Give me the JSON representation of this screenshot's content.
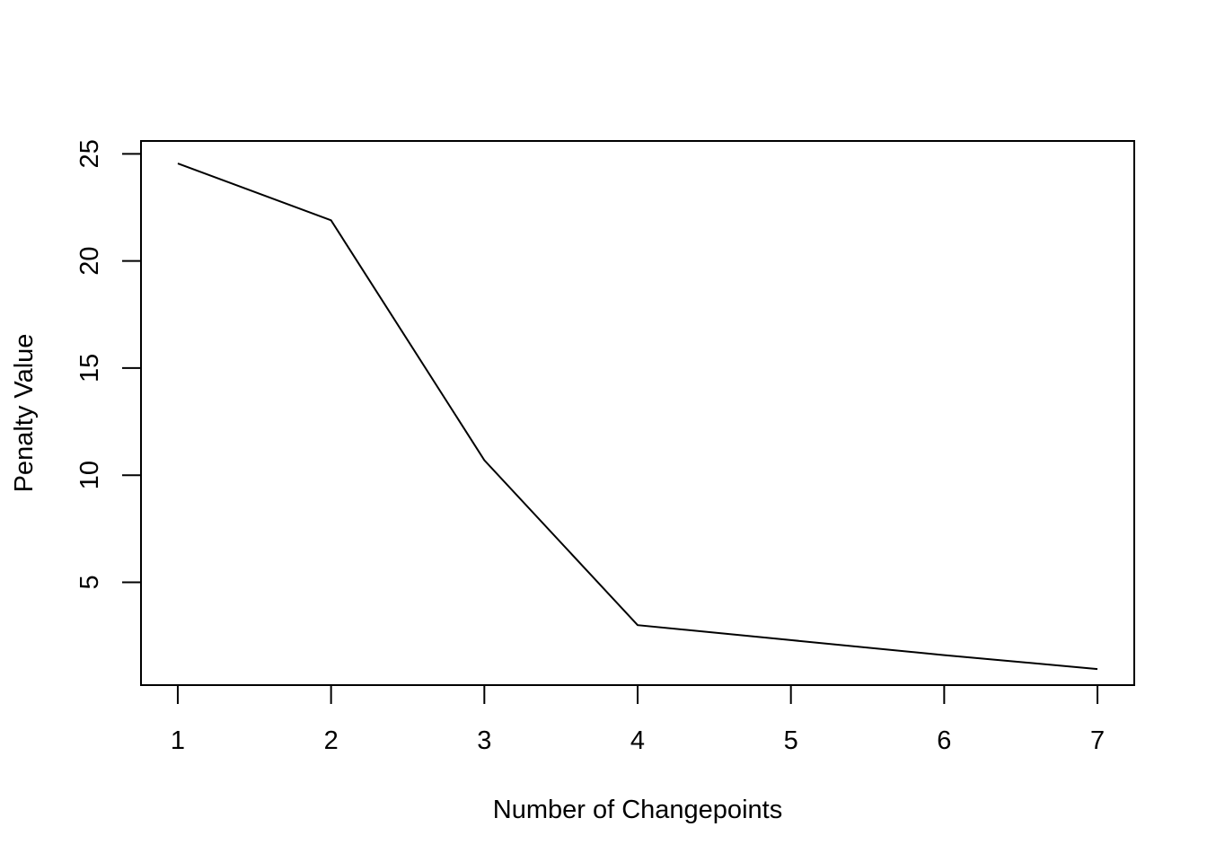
{
  "chart_data": {
    "type": "line",
    "title": "",
    "xlabel": "Number of Changepoints",
    "ylabel": "Penalty Value",
    "x": [
      1,
      2,
      3,
      4,
      5,
      6,
      7
    ],
    "series": [
      {
        "name": "Penalty Value",
        "values": [
          24.55,
          21.9,
          10.7,
          3.0,
          2.3,
          1.6,
          0.95
        ]
      }
    ],
    "xticks": [
      "1",
      "2",
      "3",
      "4",
      "5",
      "6",
      "7"
    ],
    "yticks": [
      "5",
      "10",
      "15",
      "20",
      "25"
    ],
    "xlim": [
      0.76,
      7.24
    ],
    "ylim": [
      0.2,
      25.6
    ],
    "line_color": "#000000"
  }
}
